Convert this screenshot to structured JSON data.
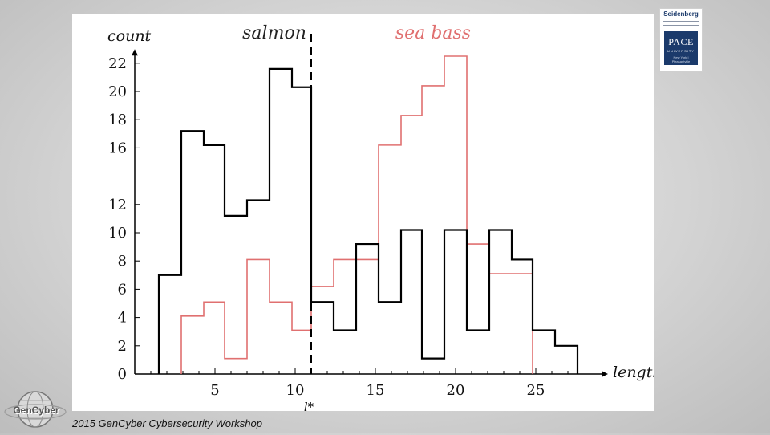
{
  "chart_data": {
    "type": "histogram",
    "ylabel": "count",
    "xlabel": "length",
    "threshold_label": "l*",
    "threshold_x": 11,
    "xlim": [
      0,
      29
    ],
    "ylim": [
      0,
      23
    ],
    "xticks": [
      5,
      10,
      15,
      20,
      25
    ],
    "yticks": [
      0,
      2,
      4,
      6,
      8,
      10,
      12,
      16,
      18,
      20,
      22
    ],
    "series": [
      {
        "name": "salmon",
        "color": "#000000",
        "bins": [
          {
            "x0": 1.5,
            "x1": 2.9,
            "value": 7
          },
          {
            "x0": 2.9,
            "x1": 4.3,
            "value": 17.2
          },
          {
            "x0": 4.3,
            "x1": 5.6,
            "value": 16.2
          },
          {
            "x0": 5.6,
            "x1": 7,
            "value": 11.2
          },
          {
            "x0": 7,
            "x1": 8.4,
            "value": 12.3
          },
          {
            "x0": 8.4,
            "x1": 9.8,
            "value": 21.6
          },
          {
            "x0": 9.8,
            "x1": 11,
            "value": 20.3
          },
          {
            "x0": 11,
            "x1": 12.4,
            "value": 5.1
          },
          {
            "x0": 12.4,
            "x1": 13.8,
            "value": 3.1
          },
          {
            "x0": 13.8,
            "x1": 15.2,
            "value": 9.2
          },
          {
            "x0": 15.2,
            "x1": 16.6,
            "value": 5.1
          },
          {
            "x0": 16.6,
            "x1": 17.9,
            "value": 10.2
          },
          {
            "x0": 17.9,
            "x1": 19.3,
            "value": 1.1
          },
          {
            "x0": 19.3,
            "x1": 20.7,
            "value": 10.2
          },
          {
            "x0": 20.7,
            "x1": 22.1,
            "value": 3.1
          },
          {
            "x0": 22.1,
            "x1": 23.5,
            "value": 10.2
          },
          {
            "x0": 23.5,
            "x1": 24.8,
            "value": 8.1
          },
          {
            "x0": 24.8,
            "x1": 26.2,
            "value": 3.1
          },
          {
            "x0": 26.2,
            "x1": 27.6,
            "value": 2.0
          }
        ]
      },
      {
        "name": "sea bass",
        "color": "#e07070",
        "bins": [
          {
            "x0": 2.9,
            "x1": 4.3,
            "value": 4.1
          },
          {
            "x0": 4.3,
            "x1": 5.6,
            "value": 5.1
          },
          {
            "x0": 5.6,
            "x1": 7,
            "value": 1.1
          },
          {
            "x0": 7,
            "x1": 8.4,
            "value": 8.1
          },
          {
            "x0": 8.4,
            "x1": 9.8,
            "value": 5.1
          },
          {
            "x0": 9.8,
            "x1": 11,
            "value": 3.1
          },
          {
            "x0": 11,
            "x1": 12.4,
            "value": 6.2
          },
          {
            "x0": 12.4,
            "x1": 13.8,
            "value": 8.1
          },
          {
            "x0": 13.8,
            "x1": 15.2,
            "value": 8.1
          },
          {
            "x0": 15.2,
            "x1": 16.6,
            "value": 16.2
          },
          {
            "x0": 16.6,
            "x1": 17.9,
            "value": 18.3
          },
          {
            "x0": 17.9,
            "x1": 19.3,
            "value": 20.4
          },
          {
            "x0": 19.3,
            "x1": 20.7,
            "value": 22.5
          },
          {
            "x0": 20.7,
            "x1": 22.1,
            "value": 9.2
          },
          {
            "x0": 22.1,
            "x1": 23.5,
            "value": 7.1
          },
          {
            "x0": 23.5,
            "x1": 24.8,
            "value": 7.1
          }
        ]
      }
    ]
  },
  "logos": {
    "top_name": "Seidenberg",
    "top_brand": "PACE",
    "top_sub": "UNIVERSITY",
    "top_city": "New York | Pleasantville",
    "bottom_name": "GenCyber"
  },
  "footer": {
    "text": "2015 GenCyber Cybersecurity Workshop"
  }
}
